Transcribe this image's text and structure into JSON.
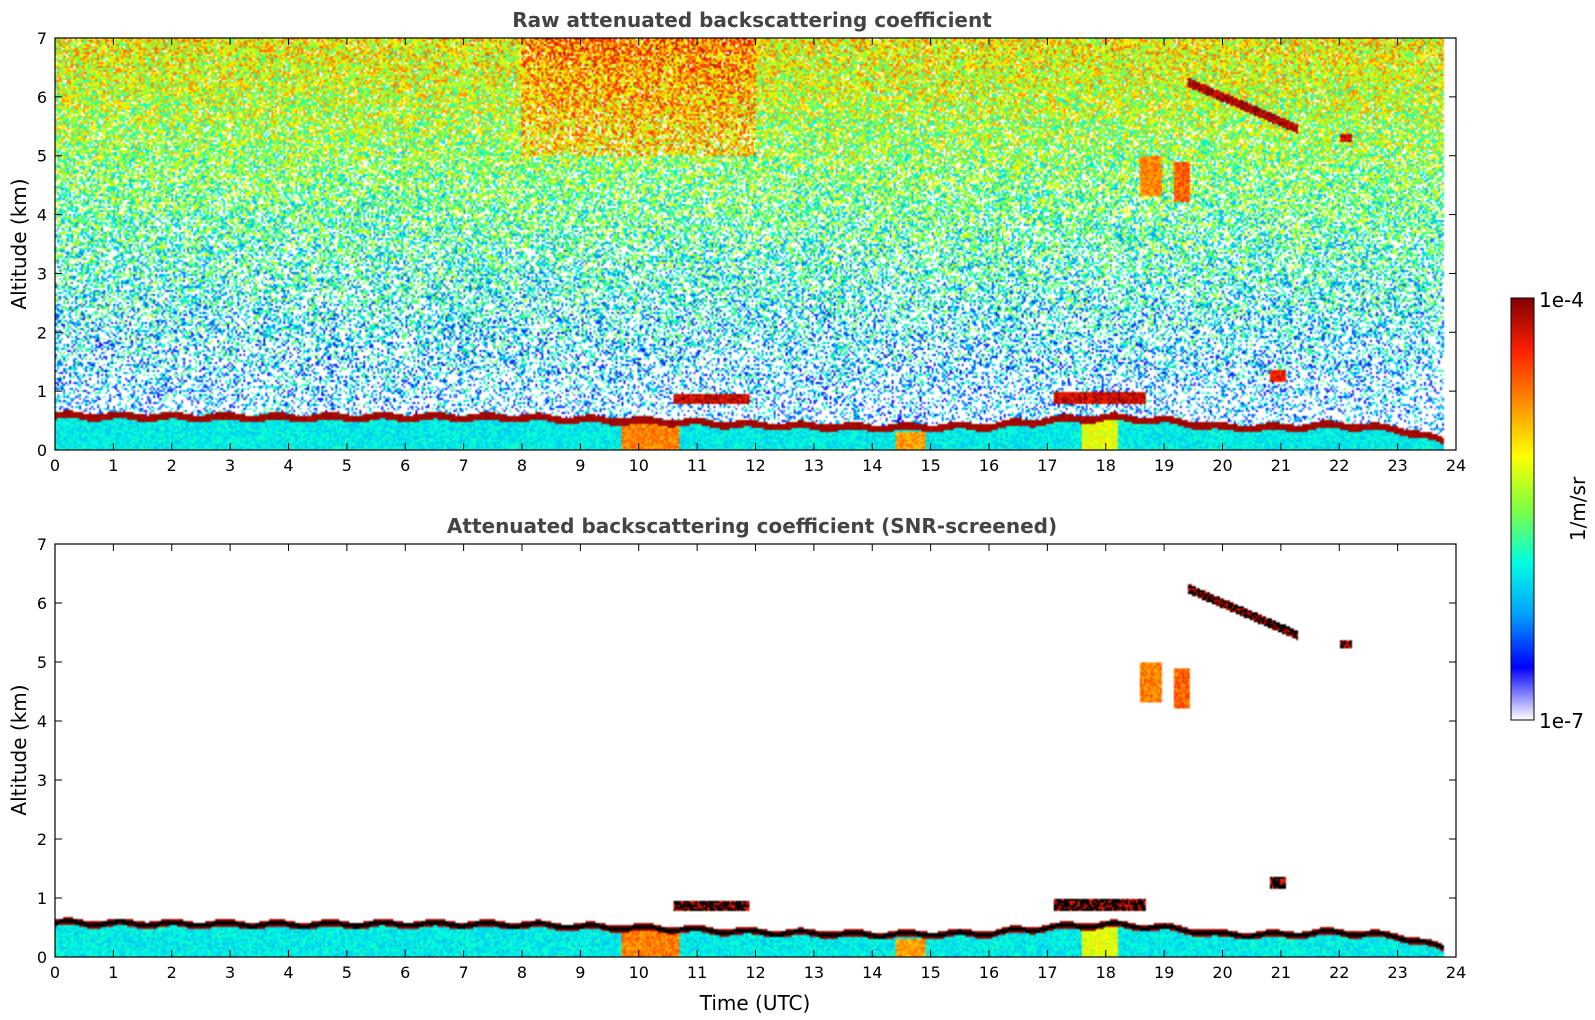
{
  "colors": {
    "cmap": [
      "#ffffff",
      "#0000ff",
      "#00a0ff",
      "#00ffe0",
      "#80ff40",
      "#ffff00",
      "#ff9000",
      "#ff2000",
      "#800000"
    ],
    "below_threshold": "#000000",
    "title_text": "#444444"
  },
  "chart_data": [
    {
      "type": "heatmap",
      "title": "Raw attenuated backscattering coefficient",
      "xlabel": "",
      "ylabel": "Altitude (km)",
      "xlim": [
        0,
        24
      ],
      "ylim": [
        0,
        7
      ],
      "x_ticks": [
        "0",
        "1",
        "2",
        "3",
        "4",
        "5",
        "6",
        "7",
        "8",
        "9",
        "10",
        "11",
        "12",
        "13",
        "14",
        "15",
        "16",
        "17",
        "18",
        "19",
        "20",
        "21",
        "22",
        "23",
        "24"
      ],
      "y_ticks": [
        "0",
        "1",
        "2",
        "3",
        "4",
        "5",
        "6",
        "7"
      ],
      "screened": false,
      "boundary_layer_top_km": [
        [
          0,
          0.58
        ],
        [
          2,
          0.56
        ],
        [
          4,
          0.55
        ],
        [
          6,
          0.56
        ],
        [
          8,
          0.55
        ],
        [
          9.5,
          0.5
        ],
        [
          10.5,
          0.48
        ],
        [
          12,
          0.42
        ],
        [
          14,
          0.38
        ],
        [
          16,
          0.4
        ],
        [
          17,
          0.5
        ],
        [
          18,
          0.55
        ],
        [
          19,
          0.5
        ],
        [
          20,
          0.38
        ],
        [
          21,
          0.38
        ],
        [
          22,
          0.42
        ],
        [
          23,
          0.35
        ],
        [
          23.8,
          0.15
        ]
      ],
      "features": [
        {
          "t0": 10.6,
          "t1": 11.9,
          "h0": 0.78,
          "h1": 0.95,
          "value_log": -4.2
        },
        {
          "t0": 17.1,
          "t1": 18.7,
          "h0": 0.78,
          "h1": 0.98,
          "value_log": -4.2
        },
        {
          "t0": 18.6,
          "t1": 18.95,
          "h0": 4.3,
          "h1": 5.0,
          "value_log": -4.7
        },
        {
          "t0": 19.15,
          "t1": 19.45,
          "h0": 4.2,
          "h1": 4.9,
          "value_log": -4.6
        },
        {
          "t0": 19.4,
          "t1": 21.3,
          "h0": 5.5,
          "h1": 6.3,
          "value_log": -4.1,
          "slanted": true
        },
        {
          "t0": 22.0,
          "t1": 22.2,
          "h0": 5.22,
          "h1": 5.38,
          "value_log": -4.2
        },
        {
          "t0": 20.8,
          "t1": 21.1,
          "h0": 1.15,
          "h1": 1.35,
          "value_log": -4.3
        },
        {
          "t0": 9.7,
          "t1": 10.7,
          "h0": 0.0,
          "h1": 0.5,
          "value_log": -4.7
        },
        {
          "t0": 14.4,
          "t1": 14.9,
          "h0": 0.0,
          "h1": 0.3,
          "value_log": -4.8
        },
        {
          "t0": 17.6,
          "t1": 18.2,
          "h0": 0.0,
          "h1": 0.5,
          "value_log": -5.2
        }
      ]
    },
    {
      "type": "heatmap",
      "title": "Attenuated backscattering coefficient (SNR-screened)",
      "xlabel": "Time (UTC)",
      "ylabel": "Altitude (km)",
      "xlim": [
        0,
        24
      ],
      "ylim": [
        0,
        7
      ],
      "x_ticks": [
        "0",
        "1",
        "2",
        "3",
        "4",
        "5",
        "6",
        "7",
        "8",
        "9",
        "10",
        "11",
        "12",
        "13",
        "14",
        "15",
        "16",
        "17",
        "18",
        "19",
        "20",
        "21",
        "22",
        "23",
        "24"
      ],
      "y_ticks": [
        "0",
        "1",
        "2",
        "3",
        "4",
        "5",
        "6",
        "7"
      ],
      "screened": true
    }
  ],
  "colorbar": {
    "label": "1/m/sr",
    "max_label": "1e-4",
    "min_label": "1e-7"
  }
}
